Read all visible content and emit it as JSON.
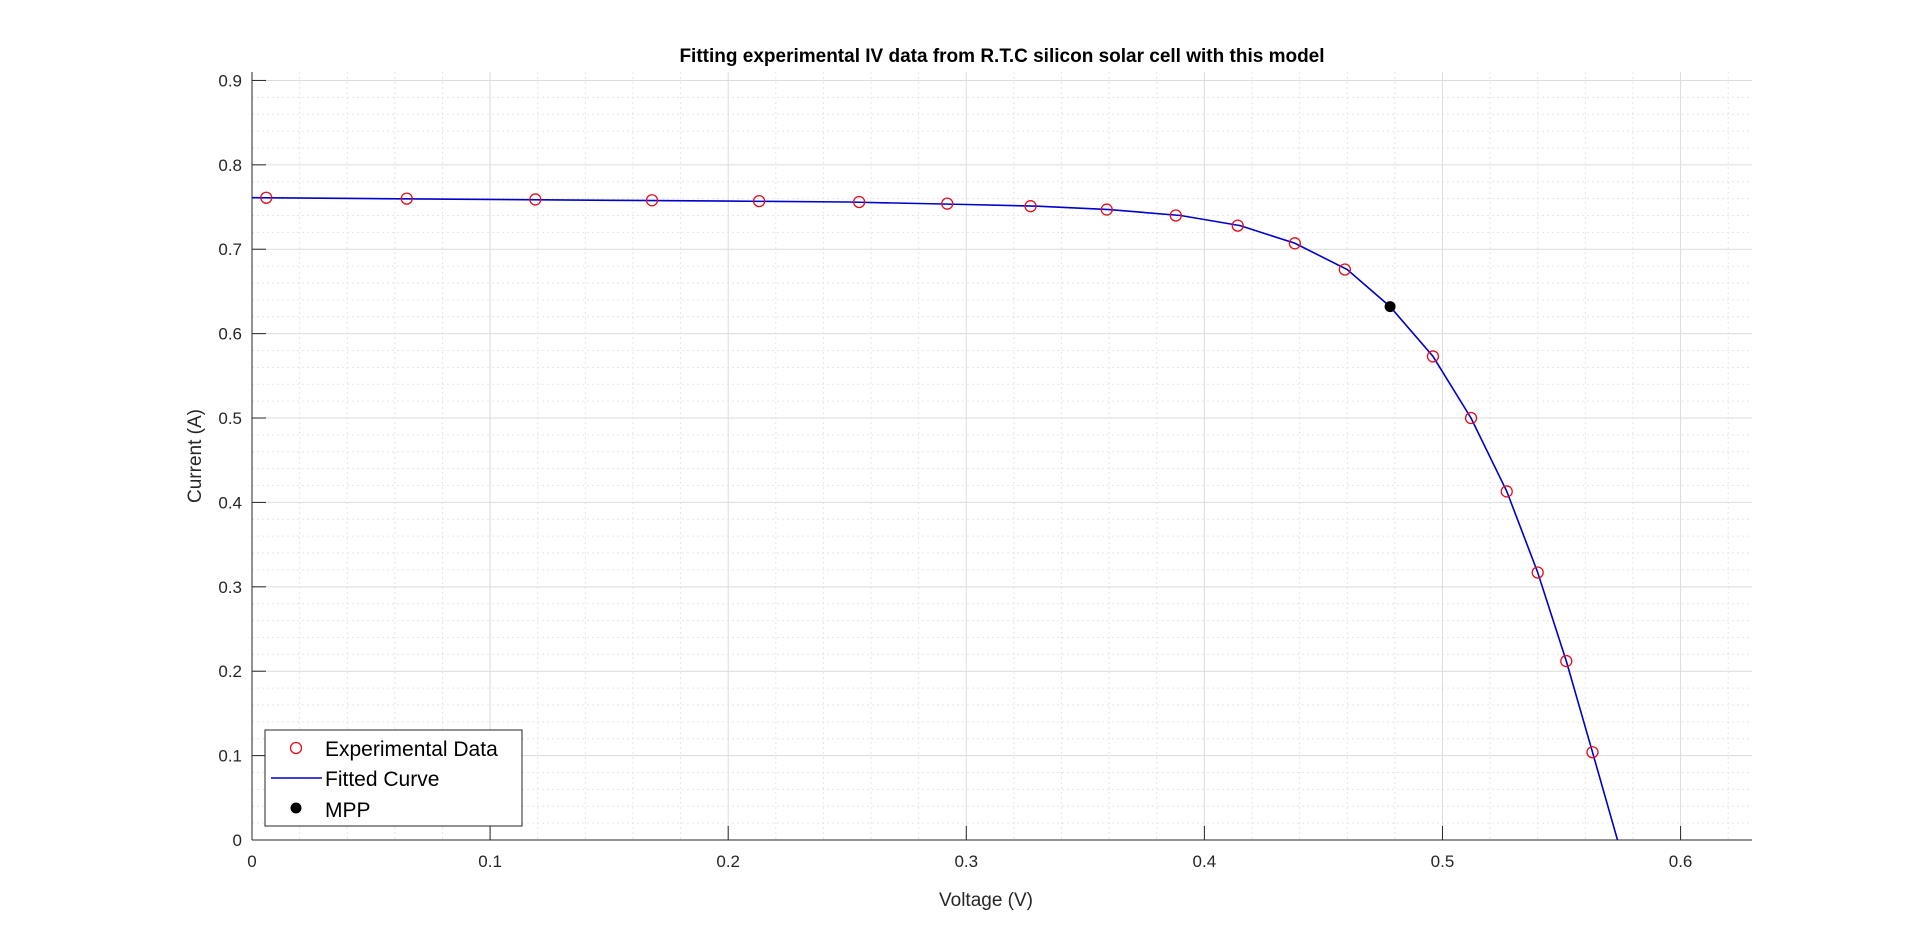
{
  "chart_data": {
    "type": "scatter",
    "title": "Fitting experimental IV data from R.T.C silicon solar cell with this model",
    "xlabel": "Voltage (V)",
    "ylabel": "Current (A)",
    "xlim": [
      0,
      0.63
    ],
    "ylim": [
      0,
      0.91
    ],
    "xticks": [
      0,
      0.1,
      0.2,
      0.3,
      0.4,
      0.5,
      0.6
    ],
    "xtick_labels": [
      "0",
      "0.1",
      "0.2",
      "0.3",
      "0.4",
      "0.5",
      "0.6"
    ],
    "yticks": [
      0,
      0.1,
      0.2,
      0.3,
      0.4,
      0.5,
      0.6,
      0.7,
      0.8,
      0.9
    ],
    "ytick_labels": [
      "0",
      "0.1",
      "0.2",
      "0.3",
      "0.4",
      "0.5",
      "0.6",
      "0.7",
      "0.8",
      "0.9"
    ],
    "grid": true,
    "minor_grid": true,
    "legend_position": "bottom-left",
    "series": [
      {
        "name": "Experimental Data",
        "kind": "scatter",
        "marker": "open-circle",
        "color": "#e0101e",
        "x": [
          0.006,
          0.065,
          0.119,
          0.168,
          0.213,
          0.255,
          0.292,
          0.327,
          0.359,
          0.388,
          0.414,
          0.438,
          0.459,
          0.496,
          0.512,
          0.527,
          0.54,
          0.552,
          0.563
        ],
        "y": [
          0.761,
          0.76,
          0.759,
          0.758,
          0.757,
          0.756,
          0.754,
          0.751,
          0.747,
          0.74,
          0.728,
          0.707,
          0.676,
          0.573,
          0.5,
          0.413,
          0.317,
          0.212,
          0.104
        ]
      },
      {
        "name": "Fitted Curve",
        "kind": "line",
        "color": "#0000cc",
        "x": [
          0.0,
          0.05,
          0.1,
          0.15,
          0.2,
          0.25,
          0.3,
          0.33,
          0.36,
          0.39,
          0.415,
          0.438,
          0.46,
          0.478,
          0.496,
          0.512,
          0.527,
          0.54,
          0.552,
          0.563,
          0.5735
        ],
        "y": [
          0.761,
          0.76,
          0.759,
          0.758,
          0.757,
          0.756,
          0.753,
          0.751,
          0.747,
          0.74,
          0.728,
          0.707,
          0.676,
          0.632,
          0.573,
          0.5,
          0.413,
          0.317,
          0.212,
          0.104,
          0.0
        ]
      },
      {
        "name": "MPP",
        "kind": "scatter",
        "marker": "filled-circle",
        "color": "#000000",
        "x": [
          0.478
        ],
        "y": [
          0.632
        ]
      }
    ]
  }
}
